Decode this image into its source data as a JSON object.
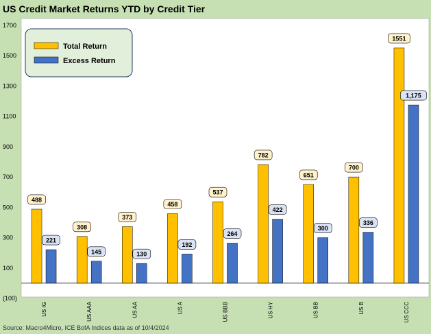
{
  "title": "US Credit Market Returns YTD by Credit Tier",
  "source": "Source: Macro4Micro, ICE BofA Indices      data as of 10/4/2024",
  "colors": {
    "frame": "#c6e0b4",
    "total": "#ffc000",
    "excess": "#4472c4",
    "total_label_bg": "#fff2cc",
    "excess_label_bg": "#dae3f3",
    "legend_bg": "#e2efda"
  },
  "chart_data": {
    "type": "bar",
    "categories": [
      "US IG",
      "US AAA",
      "US AA",
      "US A",
      "US BBB",
      "US HY",
      "US BB",
      "US B",
      "US CCC"
    ],
    "series": [
      {
        "name": "Total Return",
        "values": [
          488,
          308,
          373,
          458,
          537,
          782,
          651,
          700,
          1551
        ],
        "labels": [
          "488",
          "308",
          "373",
          "458",
          "537",
          "782",
          "651",
          "700",
          "1551"
        ]
      },
      {
        "name": "Excess Return",
        "values": [
          221,
          145,
          130,
          192,
          264,
          422,
          300,
          336,
          1175
        ],
        "labels": [
          "221",
          "145",
          "130",
          "192",
          "264",
          "422",
          "300",
          "336",
          "1,175"
        ]
      }
    ],
    "ylim": [
      -100,
      1700
    ],
    "yticks": [
      -100,
      100,
      300,
      500,
      700,
      900,
      1100,
      1300,
      1500,
      1700
    ],
    "ytick_labels": [
      "(100)",
      "100",
      "300",
      "500",
      "700",
      "900",
      "1100",
      "1300",
      "1500",
      "1700"
    ],
    "legend_position": "top-left",
    "grid": false
  }
}
